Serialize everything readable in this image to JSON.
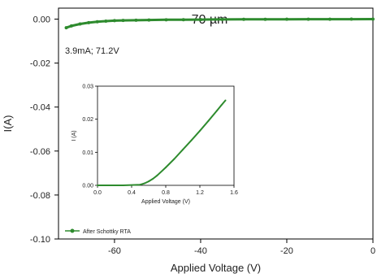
{
  "chart_data": [
    {
      "type": "line",
      "title": "70 µm",
      "xlabel": "Applied Voltage (V)",
      "ylabel": "I(A)",
      "xlim": [
        -73,
        0
      ],
      "ylim": [
        -0.1,
        0.005
      ],
      "x_ticks": [
        -60,
        -40,
        -20,
        0
      ],
      "x_tick_labels": [
        "-60",
        "-40",
        "-20",
        "0"
      ],
      "y_ticks": [
        0.0,
        -0.02,
        -0.04,
        -0.06,
        -0.08,
        -0.1
      ],
      "y_tick_labels": [
        "0.00",
        "-0.02",
        "-0.04",
        "-0.06",
        "-0.08",
        "-0.10"
      ],
      "grid": false,
      "legend_position": "bottom-left",
      "annotation": "3.9mA; 71.2V",
      "series": [
        {
          "name": "After Schottky RTA",
          "color": "#2e8b2e",
          "x": [
            -71.2,
            -70,
            -68,
            -66,
            -64,
            -62,
            -60,
            -58,
            -55,
            -52,
            -48,
            -44,
            -40,
            -35,
            -30,
            -25,
            -20,
            -15,
            -10,
            -5,
            0
          ],
          "y": [
            -0.0039,
            -0.0031,
            -0.0022,
            -0.0016,
            -0.0012,
            -0.0009,
            -0.0007,
            -0.0006,
            -0.0005,
            -0.0004,
            -0.0003,
            -0.00025,
            -0.0002,
            -0.00015,
            -0.0001,
            -8e-05,
            -6e-05,
            -4e-05,
            -2e-05,
            -1e-05,
            0
          ]
        }
      ]
    },
    {
      "type": "line",
      "title": "",
      "xlabel": "Applied Voltage (V)",
      "ylabel": "I (A)",
      "xlim": [
        0,
        1.6
      ],
      "ylim": [
        0,
        0.03
      ],
      "x_ticks": [
        0,
        0.4,
        0.8,
        1.2,
        1.6
      ],
      "x_tick_labels": [
        "0.0",
        "0.4",
        "0.8",
        "1.2",
        "1.6"
      ],
      "y_ticks": [
        0,
        0.01,
        0.02,
        0.03
      ],
      "y_tick_labels": [
        "0.00",
        "0.01",
        "0.02",
        "0.03"
      ],
      "grid": false,
      "series": [
        {
          "color": "#2e8b2e",
          "x": [
            0,
            0.3,
            0.5,
            0.55,
            0.6,
            0.65,
            0.7,
            0.8,
            0.9,
            1.0,
            1.1,
            1.2,
            1.3,
            1.4,
            1.45,
            1.5
          ],
          "y": [
            0,
            0,
            0.0002,
            0.0006,
            0.0012,
            0.002,
            0.003,
            0.0054,
            0.008,
            0.0108,
            0.0136,
            0.0165,
            0.0195,
            0.0226,
            0.0242,
            0.0257
          ]
        }
      ]
    }
  ]
}
